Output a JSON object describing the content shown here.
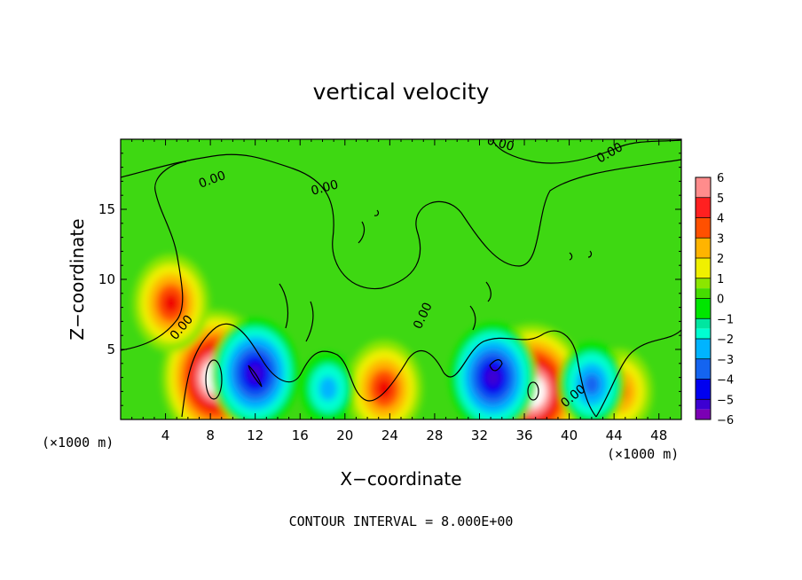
{
  "chart_data": {
    "type": "heatmap",
    "title": "vertical velocity",
    "xlabel": "X−coordinate",
    "ylabel": "Z−coordinate",
    "x_unit_left": "(×1000 m)",
    "x_unit_right": "(×1000 m)",
    "x_ticks": [
      "4",
      "8",
      "12",
      "16",
      "20",
      "24",
      "28",
      "32",
      "36",
      "40",
      "44",
      "48"
    ],
    "x_tick_values": [
      4,
      8,
      12,
      16,
      20,
      24,
      28,
      32,
      36,
      40,
      44,
      48
    ],
    "y_ticks": [
      "5",
      "10",
      "15"
    ],
    "y_tick_values": [
      5,
      10,
      15
    ],
    "xlim": [
      0,
      50
    ],
    "ylim": [
      0,
      20
    ],
    "footer": "CONTOUR INTERVAL = 8.000E+00",
    "contour_labels": [
      "0.00",
      "0.00",
      "0.00",
      "0.00",
      "0.00",
      "0.00",
      "0.00"
    ],
    "colorbar": {
      "labels": [
        "6",
        "5",
        "4",
        "3",
        "2",
        "1",
        "0",
        "−1",
        "−2",
        "−3",
        "−4",
        "−5",
        "−6"
      ],
      "values": [
        6,
        5,
        4,
        3,
        2,
        1,
        0,
        -1,
        -2,
        -3,
        -4,
        -5,
        -6
      ],
      "range": [
        -6,
        6
      ]
    },
    "features": [
      {
        "kind": "updraft",
        "x": 8.5,
        "z": 3.0,
        "peak": 8
      },
      {
        "kind": "updraft",
        "x": 36.7,
        "z": 2.0,
        "peak": 8
      },
      {
        "kind": "updraft",
        "x": 4.5,
        "z": 8.3,
        "peak": 4.5
      },
      {
        "kind": "updraft",
        "x": 23.5,
        "z": 2.2,
        "peak": 4.5
      },
      {
        "kind": "updraft",
        "x": 44.5,
        "z": 2.0,
        "peak": 3.5
      },
      {
        "kind": "downdraft",
        "x": 12.0,
        "z": 3.3,
        "peak": -6
      },
      {
        "kind": "downdraft",
        "x": 33.2,
        "z": 3.0,
        "peak": -6
      },
      {
        "kind": "downdraft",
        "x": 42.0,
        "z": 2.5,
        "peak": -4
      },
      {
        "kind": "downdraft",
        "x": 18.5,
        "z": 2.2,
        "peak": -3
      }
    ],
    "colors": {
      "scale": [
        "#7b00b4",
        "#3c00d2",
        "#0000f0",
        "#1464f0",
        "#00b4ff",
        "#00ffd2",
        "#00e600",
        "#46dc00",
        "#8ce600",
        "#f0f000",
        "#ffb400",
        "#ff5000",
        "#f00000",
        "#ff8c8c",
        "#ffffff"
      ],
      "background": "#3ed812"
    }
  }
}
